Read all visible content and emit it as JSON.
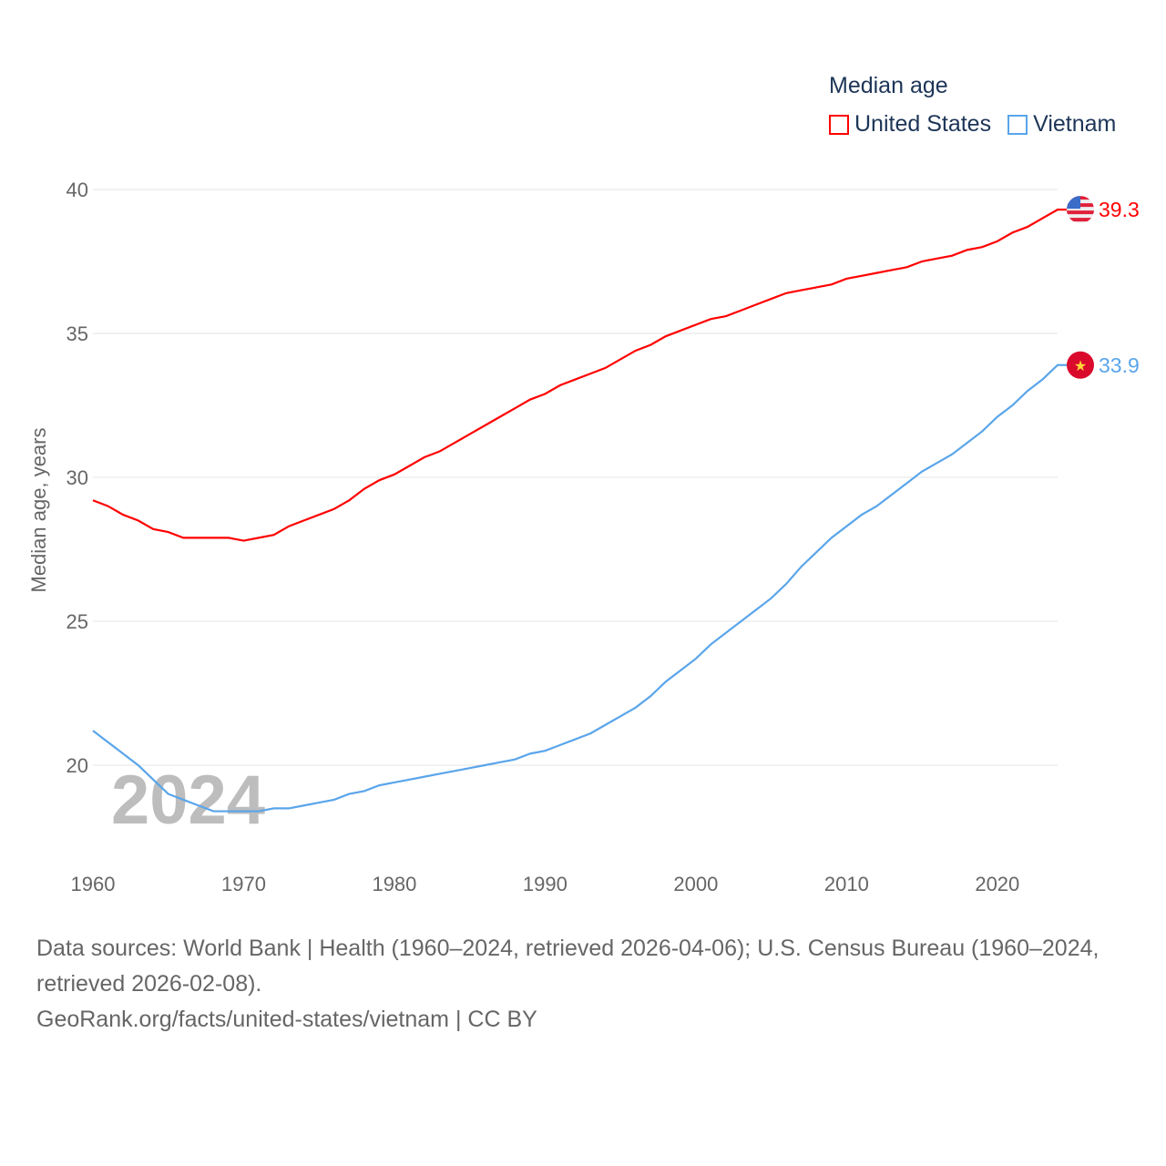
{
  "chart_data": {
    "type": "line",
    "ylabel": "Median age, years",
    "xlabel": "",
    "xlim": [
      1960,
      2024
    ],
    "ylim": [
      17,
      41
    ],
    "yticks": [
      20,
      25,
      30,
      35,
      40
    ],
    "xticks": [
      1960,
      1970,
      1980,
      1990,
      2000,
      2010,
      2020
    ],
    "grid": true,
    "legend_position": "top-right",
    "legend_title": "Median age",
    "timeline_label": "2024",
    "x": [
      1960,
      1961,
      1962,
      1963,
      1964,
      1965,
      1966,
      1967,
      1968,
      1969,
      1970,
      1971,
      1972,
      1973,
      1974,
      1975,
      1976,
      1977,
      1978,
      1979,
      1980,
      1981,
      1982,
      1983,
      1984,
      1985,
      1986,
      1987,
      1988,
      1989,
      1990,
      1991,
      1992,
      1993,
      1994,
      1995,
      1996,
      1997,
      1998,
      1999,
      2000,
      2001,
      2002,
      2003,
      2004,
      2005,
      2006,
      2007,
      2008,
      2009,
      2010,
      2011,
      2012,
      2013,
      2014,
      2015,
      2016,
      2017,
      2018,
      2019,
      2020,
      2021,
      2022,
      2023,
      2024
    ],
    "series": [
      {
        "name": "United States",
        "color": "#ff0000",
        "end_label": "39.3",
        "flag": "us-flag-icon",
        "values": [
          29.2,
          29.0,
          28.7,
          28.5,
          28.2,
          28.1,
          27.9,
          27.9,
          27.9,
          27.9,
          27.8,
          27.9,
          28.0,
          28.3,
          28.5,
          28.7,
          28.9,
          29.2,
          29.6,
          29.9,
          30.1,
          30.4,
          30.7,
          30.9,
          31.2,
          31.5,
          31.8,
          32.1,
          32.4,
          32.7,
          32.9,
          33.2,
          33.4,
          33.6,
          33.8,
          34.1,
          34.4,
          34.6,
          34.9,
          35.1,
          35.3,
          35.5,
          35.6,
          35.8,
          36.0,
          36.2,
          36.4,
          36.5,
          36.6,
          36.7,
          36.9,
          37.0,
          37.1,
          37.2,
          37.3,
          37.5,
          37.6,
          37.7,
          37.9,
          38.0,
          38.2,
          38.5,
          38.7,
          39.0,
          39.3
        ]
      },
      {
        "name": "Vietnam",
        "color": "#5aa5ea",
        "end_label": "33.9",
        "flag": "vietnam-flag-icon",
        "values": [
          21.2,
          20.8,
          20.4,
          20.0,
          19.5,
          19.0,
          18.8,
          18.6,
          18.4,
          18.4,
          18.4,
          18.4,
          18.5,
          18.5,
          18.6,
          18.7,
          18.8,
          19.0,
          19.1,
          19.3,
          19.4,
          19.5,
          19.6,
          19.7,
          19.8,
          19.9,
          20.0,
          20.1,
          20.2,
          20.4,
          20.5,
          20.7,
          20.9,
          21.1,
          21.4,
          21.7,
          22.0,
          22.4,
          22.9,
          23.3,
          23.7,
          24.2,
          24.6,
          25.0,
          25.4,
          25.8,
          26.3,
          26.9,
          27.4,
          27.9,
          28.3,
          28.7,
          29.0,
          29.4,
          29.8,
          30.2,
          30.5,
          30.8,
          31.2,
          31.6,
          32.1,
          32.5,
          33.0,
          33.4,
          33.9
        ]
      }
    ]
  },
  "footer": {
    "sources": "Data sources: World Bank | Health (1960–2024, retrieved 2026-04-06); U.S. Census Bureau (1960–2024, retrieved 2026-02-08).",
    "credit": "GeoRank.org/facts/united-states/vietnam | CC BY"
  }
}
